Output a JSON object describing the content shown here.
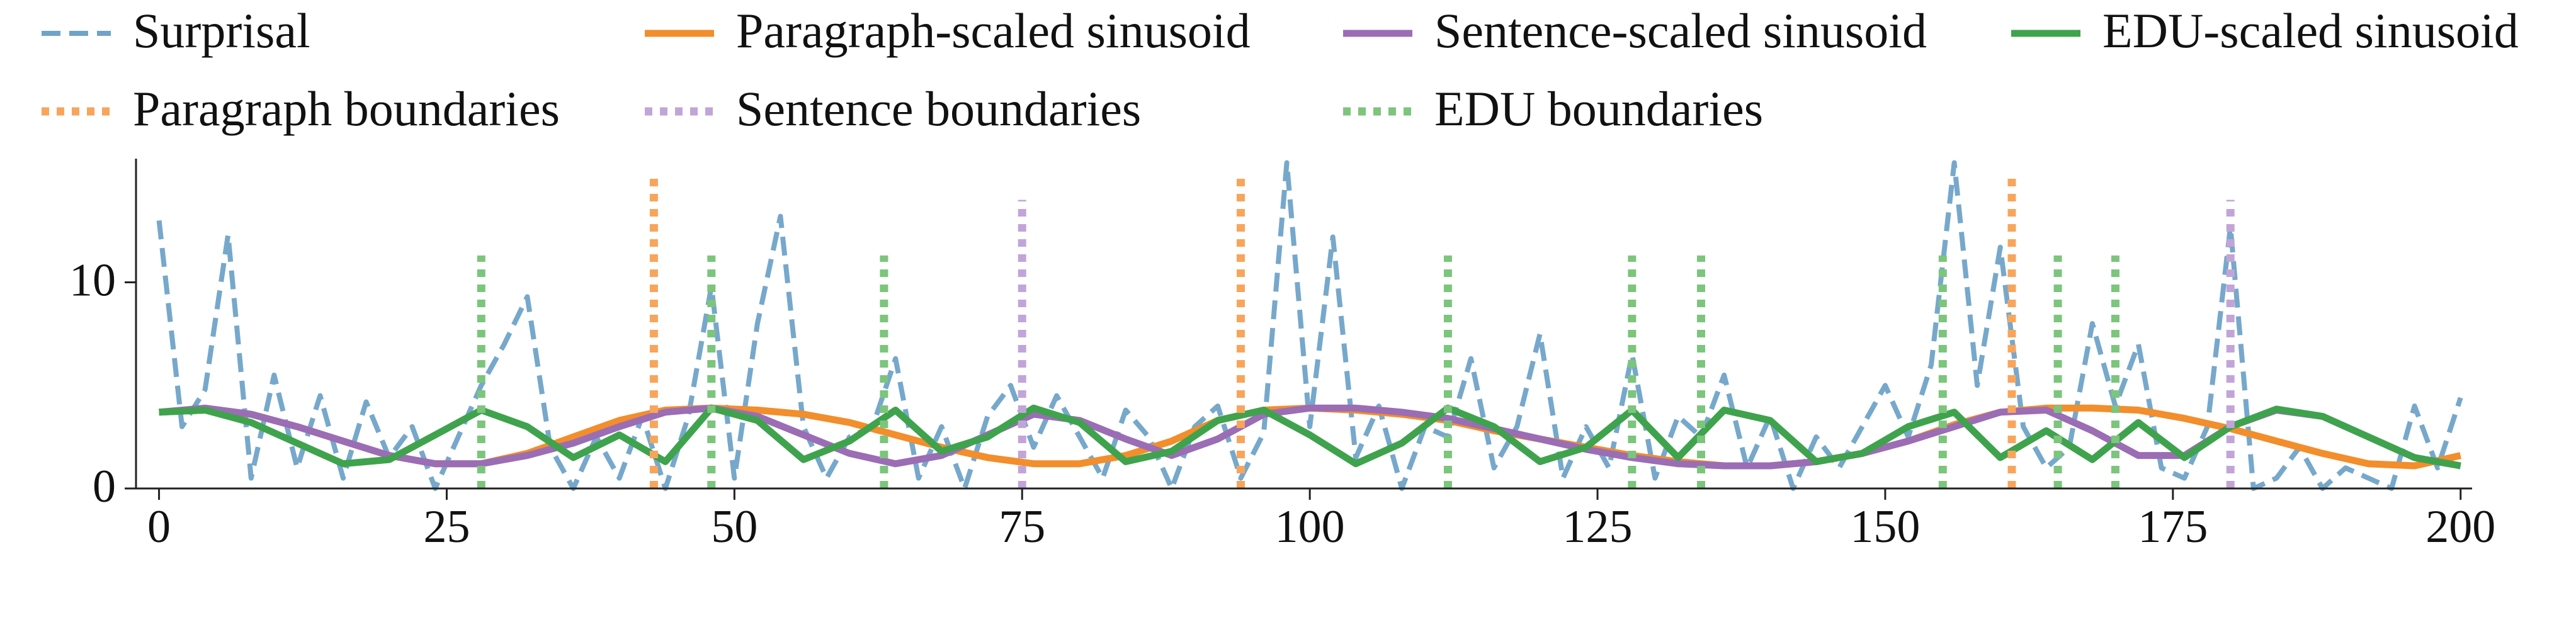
{
  "chart_data": {
    "type": "line",
    "xlim": [
      -2,
      201
    ],
    "ylim": [
      0,
      16
    ],
    "xticks": [
      0,
      25,
      50,
      75,
      100,
      125,
      150,
      175,
      200
    ],
    "yticks": [
      0,
      10
    ],
    "legend": "top",
    "series": [
      {
        "name": "Surprisal",
        "type": "line",
        "style": "dashed",
        "color": "#6fa3c8",
        "x": [
          0,
          2,
          4,
          6,
          8,
          10,
          12,
          14,
          16,
          18,
          20,
          22,
          24,
          26,
          28,
          30,
          32,
          34,
          36,
          38,
          40,
          42,
          44,
          46,
          48,
          50,
          52,
          54,
          56,
          58,
          60,
          62,
          64,
          66,
          68,
          70,
          72,
          74,
          76,
          78,
          80,
          82,
          84,
          86,
          88,
          90,
          92,
          94,
          96,
          98,
          100,
          102,
          104,
          106,
          108,
          110,
          112,
          114,
          116,
          118,
          120,
          122,
          124,
          126,
          128,
          130,
          132,
          134,
          136,
          138,
          140,
          142,
          144,
          146,
          148,
          150,
          152,
          154,
          156,
          158,
          160,
          162,
          164,
          166,
          168,
          170,
          172,
          174,
          176,
          178,
          180,
          182,
          184,
          186,
          188,
          190,
          192,
          194,
          196,
          198,
          200
        ],
        "values": [
          13,
          3,
          4.8,
          12.3,
          0.5,
          5.5,
          1,
          4.5,
          0.5,
          4.2,
          1.5,
          3,
          0,
          2.5,
          5,
          7,
          9.3,
          2,
          0,
          2.5,
          0.5,
          3.5,
          0,
          3.5,
          9.8,
          0.5,
          8,
          13.2,
          3,
          0.5,
          2.5,
          3,
          6.3,
          0.5,
          3,
          0,
          3.5,
          5,
          2,
          4.5,
          2.5,
          0.5,
          3.8,
          2.5,
          0,
          3,
          4,
          0.5,
          2.7,
          15.8,
          3,
          12.2,
          1.5,
          4,
          0,
          3,
          2.5,
          6.3,
          1,
          3,
          7.5,
          0.5,
          3,
          1,
          6.5,
          0.5,
          3.5,
          2.5,
          5.5,
          1,
          3.5,
          0,
          2.5,
          1,
          3,
          5,
          2.5,
          6,
          15.8,
          5,
          11.7,
          3,
          1,
          2,
          8,
          4,
          7,
          1,
          0.5,
          3,
          12.7,
          0,
          0.5,
          2,
          0,
          1,
          0.5,
          0,
          4,
          1,
          4.4
        ]
      },
      {
        "name": "Paragraph-scaled sinusoid",
        "type": "line",
        "style": "solid",
        "color": "#f28e2b",
        "x": [
          0,
          4,
          8,
          12,
          16,
          20,
          24,
          28,
          32,
          36,
          40,
          44,
          48,
          52,
          56,
          60,
          64,
          68,
          72,
          76,
          80,
          84,
          88,
          92,
          96,
          100,
          104,
          108,
          112,
          116,
          120,
          124,
          128,
          132,
          136,
          140,
          144,
          148,
          152,
          156,
          160,
          164,
          168,
          172,
          176,
          180,
          184,
          188,
          192,
          196,
          200
        ],
        "values": [
          3.7,
          3.8,
          3.6,
          3.0,
          2.3,
          1.6,
          1.2,
          1.2,
          1.7,
          2.5,
          3.3,
          3.8,
          3.9,
          3.8,
          3.6,
          3.2,
          2.6,
          2.0,
          1.5,
          1.2,
          1.2,
          1.6,
          2.3,
          3.3,
          3.8,
          3.9,
          3.8,
          3.6,
          3.3,
          2.8,
          2.4,
          2.0,
          1.6,
          1.3,
          1.1,
          1.1,
          1.3,
          1.7,
          2.3,
          3.1,
          3.7,
          3.9,
          3.9,
          3.8,
          3.4,
          2.9,
          2.3,
          1.7,
          1.2,
          1.1,
          1.6
        ]
      },
      {
        "name": "Sentence-scaled sinusoid",
        "type": "line",
        "style": "solid",
        "color": "#9b6db5",
        "x": [
          0,
          4,
          8,
          12,
          16,
          20,
          24,
          28,
          32,
          36,
          40,
          44,
          48,
          52,
          56,
          60,
          64,
          68,
          72,
          76,
          80,
          84,
          88,
          92,
          96,
          100,
          104,
          108,
          112,
          116,
          120,
          124,
          128,
          132,
          136,
          140,
          144,
          148,
          152,
          156,
          160,
          164,
          168,
          172,
          176,
          180,
          184,
          188,
          192,
          196,
          200
        ],
        "values": [
          3.7,
          3.9,
          3.6,
          3.0,
          2.3,
          1.6,
          1.2,
          1.2,
          1.6,
          2.2,
          3.0,
          3.7,
          3.9,
          3.5,
          2.6,
          1.7,
          1.2,
          1.6,
          2.6,
          3.6,
          3.3,
          2.4,
          1.6,
          2.4,
          3.6,
          3.9,
          3.9,
          3.7,
          3.4,
          2.9,
          2.4,
          1.9,
          1.5,
          1.2,
          1.1,
          1.1,
          1.3,
          1.7,
          2.3,
          3.0,
          3.7,
          3.8,
          2.8,
          1.6,
          1.6,
          3.0,
          3.8,
          3.5,
          2.5,
          1.5,
          1.1
        ]
      },
      {
        "name": "EDU-scaled sinusoid",
        "type": "line",
        "style": "solid",
        "color": "#3fa34d",
        "x": [
          0,
          4,
          8,
          12,
          16,
          20,
          24,
          28,
          32,
          36,
          40,
          44,
          48,
          52,
          56,
          60,
          64,
          68,
          72,
          76,
          80,
          84,
          88,
          92,
          96,
          100,
          104,
          108,
          112,
          116,
          120,
          124,
          128,
          132,
          136,
          140,
          144,
          148,
          152,
          156,
          160,
          164,
          168,
          172,
          176,
          180,
          184,
          188,
          192,
          196,
          200
        ],
        "values": [
          3.7,
          3.8,
          3.2,
          2.2,
          1.2,
          1.4,
          2.6,
          3.8,
          3.0,
          1.5,
          2.6,
          1.3,
          3.9,
          3.3,
          1.4,
          2.3,
          3.8,
          1.8,
          2.5,
          3.9,
          3.2,
          1.3,
          1.8,
          3.3,
          3.8,
          2.6,
          1.2,
          2.2,
          3.9,
          3.0,
          1.3,
          2.0,
          3.8,
          1.5,
          3.8,
          3.3,
          1.3,
          1.7,
          3.0,
          3.7,
          1.5,
          2.8,
          1.4,
          3.2,
          1.5,
          3.0,
          3.85,
          3.5,
          2.5,
          1.5,
          1.1
        ]
      },
      {
        "name": "Paragraph boundaries",
        "type": "vlines",
        "style": "dotted",
        "color": "#f8a55c",
        "height": 15.3,
        "x": [
          43,
          94,
          161
        ]
      },
      {
        "name": "Sentence boundaries",
        "type": "vlines",
        "style": "dotted",
        "color": "#c2a5d8",
        "height": 14,
        "x": [
          75,
          180
        ]
      },
      {
        "name": "EDU boundaries",
        "type": "vlines",
        "style": "dotted",
        "color": "#7cc57c",
        "height": 11.3,
        "x": [
          28,
          48,
          63,
          112,
          128,
          134,
          155,
          165,
          170
        ]
      }
    ]
  }
}
